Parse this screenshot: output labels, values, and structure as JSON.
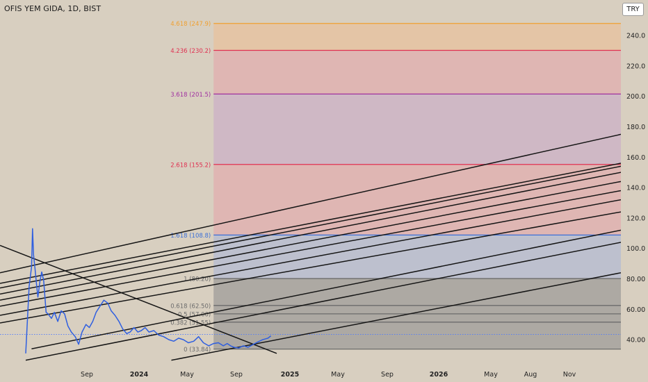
{
  "header": {
    "title": "OFIS YEM GIDA, 1D, BIST",
    "currency": "TRY"
  },
  "chart_data": {
    "type": "line",
    "symbol": "OFIS YEM GIDA",
    "interval": "1D",
    "exchange": "BIST",
    "ylim": [
      30,
      256
    ],
    "y_ticks": [
      "240.0",
      "220.0",
      "200.0",
      "180.0",
      "160.0",
      "140.0",
      "120.0",
      "100.0",
      "80.00",
      "60.00",
      "40.00"
    ],
    "x_ticks": [
      "Sep",
      "2024",
      "May",
      "Sep",
      "2025",
      "May",
      "Sep",
      "2026",
      "May",
      "Aug",
      "Nov"
    ],
    "x_range": [
      "2023-06-28",
      "2026-12-28"
    ],
    "price_series": {
      "dates": [
        "2023-08-20",
        "2023-08-27",
        "2023-09-01",
        "2023-09-03",
        "2023-09-05",
        "2023-09-08",
        "2023-09-11",
        "2023-09-14",
        "2023-09-18",
        "2023-09-22",
        "2023-09-26",
        "2023-10-01",
        "2023-10-05",
        "2023-10-12",
        "2023-10-18",
        "2023-10-25",
        "2023-11-01",
        "2023-11-08",
        "2023-11-15",
        "2023-11-22",
        "2023-11-30",
        "2023-12-07",
        "2023-12-14",
        "2023-12-22",
        "2023-12-29",
        "2024-01-05",
        "2024-01-12",
        "2024-01-20",
        "2024-01-28",
        "2024-02-05",
        "2024-02-12",
        "2024-02-20",
        "2024-02-28",
        "2024-03-07",
        "2024-03-15",
        "2024-03-22",
        "2024-03-30",
        "2024-04-07",
        "2024-04-14",
        "2024-04-22",
        "2024-04-30",
        "2024-05-10",
        "2024-05-20",
        "2024-05-30",
        "2024-06-10",
        "2024-06-20",
        "2024-06-30",
        "2024-07-10",
        "2024-07-20",
        "2024-07-31",
        "2024-08-10",
        "2024-08-20",
        "2024-08-31",
        "2024-09-10",
        "2024-09-20",
        "2024-09-30",
        "2024-10-08",
        "2024-10-15",
        "2024-10-22",
        "2024-11-01",
        "2024-11-10",
        "2024-11-20",
        "2024-12-01",
        "2024-12-10",
        "2024-12-20",
        "2024-12-31",
        "2025-01-06"
      ],
      "values": [
        31.0,
        75.0,
        88.0,
        113.0,
        96.0,
        87.0,
        77.0,
        68.0,
        78.0,
        84.5,
        79.0,
        58.0,
        57.0,
        54.0,
        58.0,
        52.0,
        59.0,
        57.0,
        49.0,
        45.0,
        42.0,
        37.0,
        45.0,
        50.0,
        48.0,
        52.0,
        58.0,
        62.0,
        66.0,
        64.0,
        59.0,
        56.0,
        52.0,
        47.0,
        44.0,
        45.0,
        48.0,
        45.0,
        46.0,
        48.0,
        45.0,
        46.0,
        43.0,
        42.0,
        40.0,
        39.0,
        41.0,
        40.0,
        38.0,
        39.0,
        42.0,
        38.0,
        36.0,
        37.5,
        38.0,
        36.0,
        37.5,
        36.0,
        35.0,
        34.5,
        36.0,
        35.0,
        37.0,
        38.5,
        40.0,
        41.0,
        42.5
      ]
    },
    "fibonacci_extension": {
      "start_date": "2024-09-10",
      "levels": [
        {
          "ratio": "0",
          "value": 33.84,
          "label": "0 (33.84)",
          "color": "#6b6b6b"
        },
        {
          "ratio": "0.382",
          "value": 51.55,
          "label": "0.382 (51.55)",
          "color": "#6b6b6b"
        },
        {
          "ratio": "0.5",
          "value": 57.0,
          "label": "0.5 (57.00)",
          "color": "#6b6b6b"
        },
        {
          "ratio": "0.618",
          "value": 62.5,
          "label": "0.618 (62.50)",
          "color": "#6b6b6b"
        },
        {
          "ratio": "1",
          "value": 80.2,
          "label": "1 (80.20)",
          "color": "#6b6b6b"
        },
        {
          "ratio": "1.618",
          "value": 108.8,
          "label": "1.618 (108.8)",
          "color": "#3a6fd8"
        },
        {
          "ratio": "2.618",
          "value": 155.2,
          "label": "2.618 (155.2)",
          "color": "#e03050"
        },
        {
          "ratio": "3.618",
          "value": 201.5,
          "label": "3.618 (201.5)",
          "color": "#a030a0"
        },
        {
          "ratio": "4.236",
          "value": 230.2,
          "label": "4.236 (230.2)",
          "color": "#e03050"
        },
        {
          "ratio": "4.618",
          "value": 247.9,
          "label": "4.618 (247.9)",
          "color": "#f0a030"
        }
      ],
      "zones": [
        {
          "from": 33.84,
          "to": 80.2,
          "color": "#8a8a8a"
        },
        {
          "from": 80.2,
          "to": 108.8,
          "color": "#a7b4d8"
        },
        {
          "from": 108.8,
          "to": 155.2,
          "color": "#e6a3a8"
        },
        {
          "from": 155.2,
          "to": 201.5,
          "color": "#c8a6c8"
        },
        {
          "from": 201.5,
          "to": 230.2,
          "color": "#e6a3a8"
        },
        {
          "from": 230.2,
          "to": 247.9,
          "color": "#eebd8f"
        }
      ]
    },
    "trend_lines": [
      {
        "from": [
          "2023-06-28",
          102.0
        ],
        "to": [
          "2025-01-18",
          31.0
        ]
      },
      {
        "from": [
          "2023-06-28",
          84.0
        ],
        "to": [
          "2026-12-28",
          175.0
        ]
      },
      {
        "from": [
          "2023-06-28",
          77.0
        ],
        "to": [
          "2026-12-28",
          156.0
        ]
      },
      {
        "from": [
          "2023-06-28",
          74.0
        ],
        "to": [
          "2026-12-28",
          154.0
        ]
      },
      {
        "from": [
          "2023-06-28",
          70.0
        ],
        "to": [
          "2026-12-28",
          150.0
        ]
      },
      {
        "from": [
          "2023-06-28",
          66.0
        ],
        "to": [
          "2026-12-28",
          144.0
        ]
      },
      {
        "from": [
          "2023-06-28",
          62.0
        ],
        "to": [
          "2026-12-28",
          138.0
        ]
      },
      {
        "from": [
          "2023-06-28",
          56.0
        ],
        "to": [
          "2026-12-28",
          132.0
        ]
      },
      {
        "from": [
          "2023-06-28",
          51.0
        ],
        "to": [
          "2026-12-28",
          124.0
        ]
      },
      {
        "from": [
          "2023-09-01",
          34.0
        ],
        "to": [
          "2026-12-28",
          112.0
        ]
      },
      {
        "from": [
          "2023-08-20",
          26.5
        ],
        "to": [
          "2026-12-28",
          104.0
        ]
      },
      {
        "from": [
          "2024-06-15",
          26.5
        ],
        "to": [
          "2026-12-28",
          84.0
        ]
      }
    ],
    "last_price_line": 43.5,
    "colors": {
      "background": "#d8cfc0",
      "price_line": "#2f5fe0",
      "trend_line": "#151515",
      "last_price_dotted": "#4a78ff"
    },
    "grid": false
  }
}
